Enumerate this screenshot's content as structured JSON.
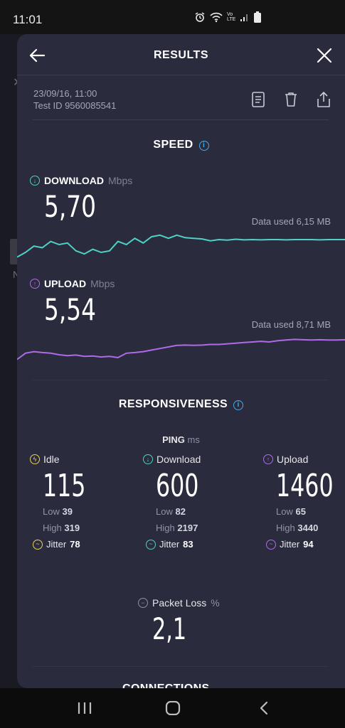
{
  "status_bar": {
    "time": "11:01",
    "icons": [
      "alarm-icon",
      "wifi-icon",
      "volte-icon",
      "signal-icon",
      "battery-icon"
    ],
    "volte_text": "Vo LTE"
  },
  "background_peek": {
    "x_glyph": "✕",
    "n_glyph": "N"
  },
  "header": {
    "title": "RESULTS"
  },
  "meta": {
    "date": "23/09/16, 11:00",
    "test_id": "Test ID 9560085541"
  },
  "speed": {
    "title": "SPEED",
    "info": "i",
    "download": {
      "label": "DOWNLOAD",
      "unit": "Mbps",
      "value": "5,70",
      "data_used": "Data used 6,15 MB",
      "color": "#4fd1c5",
      "series": [
        0.1,
        0.25,
        0.45,
        0.4,
        0.6,
        0.5,
        0.55,
        0.3,
        0.2,
        0.35,
        0.25,
        0.3,
        0.6,
        0.5,
        0.7,
        0.55,
        0.75,
        0.8,
        0.7,
        0.8,
        0.72,
        0.7,
        0.68,
        0.62,
        0.66,
        0.64,
        0.67,
        0.65,
        0.66,
        0.65,
        0.66,
        0.66,
        0.65,
        0.66,
        0.66,
        0.66,
        0.65,
        0.66,
        0.66,
        0.66
      ]
    },
    "upload": {
      "label": "UPLOAD",
      "unit": "Mbps",
      "value": "5,54",
      "data_used": "Data used 8,71 MB",
      "color": "#b06ae8",
      "series": [
        0.1,
        0.3,
        0.35,
        0.32,
        0.3,
        0.25,
        0.22,
        0.24,
        0.2,
        0.21,
        0.18,
        0.2,
        0.16,
        0.3,
        0.32,
        0.35,
        0.4,
        0.45,
        0.5,
        0.55,
        0.56,
        0.55,
        0.56,
        0.58,
        0.58,
        0.6,
        0.62,
        0.64,
        0.66,
        0.68,
        0.66,
        0.7,
        0.72,
        0.74,
        0.73,
        0.72,
        0.73,
        0.72,
        0.72,
        0.73
      ]
    }
  },
  "responsiveness": {
    "title": "RESPONSIVENESS",
    "info": "i",
    "ping_label": "PING",
    "ping_unit": "ms",
    "columns": [
      {
        "label": "Idle",
        "value": "115",
        "low_label": "Low",
        "low": "39",
        "high_label": "High",
        "high": "319",
        "jitter_label": "Jitter",
        "jitter": "78",
        "color": "#e9d35a",
        "icon": "bolt-icon"
      },
      {
        "label": "Download",
        "value": "600",
        "low_label": "Low",
        "low": "82",
        "high_label": "High",
        "high": "2197",
        "jitter_label": "Jitter",
        "jitter": "83",
        "color": "#4fd1c5",
        "icon": "arrow-down-icon"
      },
      {
        "label": "Upload",
        "value": "1460",
        "low_label": "Low",
        "low": "65",
        "high_label": "High",
        "high": "3440",
        "jitter_label": "Jitter",
        "jitter": "94",
        "color": "#b06ae8",
        "icon": "arrow-up-icon"
      }
    ],
    "packet_loss": {
      "label": "Packet Loss",
      "unit": "%",
      "value": "2,1"
    }
  },
  "next_section": {
    "title": "CONNECTIONS"
  },
  "nav": {
    "recent": "recent-apps-icon",
    "home": "home-icon",
    "back": "back-icon"
  }
}
